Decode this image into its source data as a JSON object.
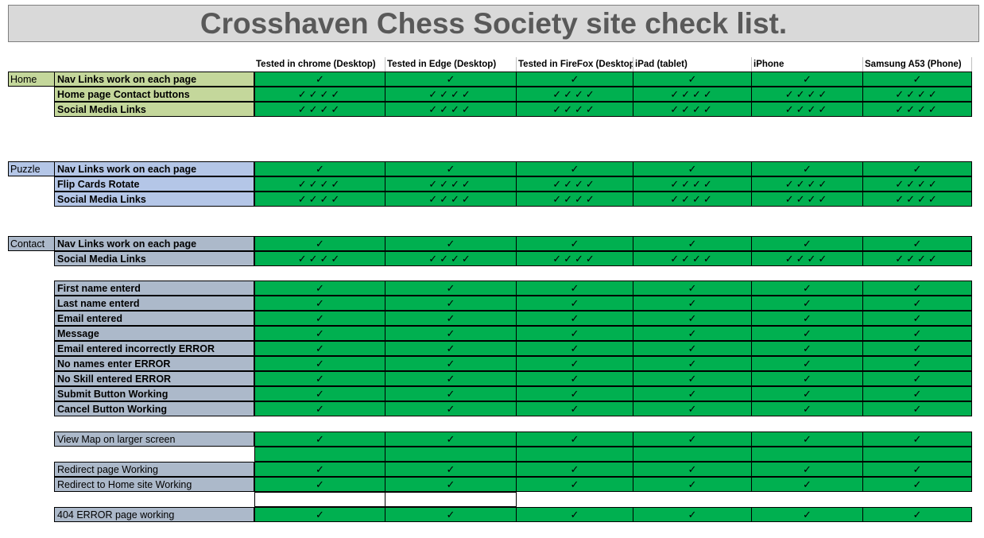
{
  "title": "Crosshaven Chess Society site check list.",
  "columns": [
    "Tested in chrome (Desktop)",
    "Tested in Edge (Desktop)",
    "Tested in FireFox (Desktop)",
    "iPad (tablet)",
    "iPhone",
    "Samsung  A53 (Phone)"
  ],
  "marks": {
    "single": "✓",
    "quad": "✓✓✓✓"
  },
  "sections": [
    {
      "name": "Home",
      "color": "#c4d79b",
      "rows": [
        {
          "label": "Nav Links work on each page",
          "mark": "single",
          "bold": true
        },
        {
          "label": "Home  page Contact buttons",
          "mark": "quad",
          "bold": true
        },
        {
          "label": " Social Media Links",
          "mark": "quad",
          "bold": true
        }
      ]
    },
    {
      "name": "Puzzle",
      "color": "#b4c6e7",
      "rows": [
        {
          "label": "Nav Links work on each page",
          "mark": "single",
          "bold": true
        },
        {
          "label": "Flip Cards Rotate",
          "mark": "quad",
          "bold": true
        },
        {
          "label": " Social Media Links",
          "mark": "quad",
          "bold": true
        }
      ]
    },
    {
      "name": "Contact",
      "color": "#acb9ca",
      "rows": [
        {
          "label": "Nav Links work on each page",
          "mark": "single",
          "bold": true
        },
        {
          "label": " Social Media Links",
          "mark": "quad",
          "bold": true
        }
      ]
    },
    {
      "name": "",
      "color": "#acb9ca",
      "rows": [
        {
          "label": "First name enterd",
          "mark": "single",
          "bold": true
        },
        {
          "label": "Last name enterd",
          "mark": "single",
          "bold": true
        },
        {
          "label": "Email entered",
          "mark": "single",
          "bold": true
        },
        {
          "label": "Message",
          "mark": "single",
          "bold": true
        },
        {
          "label": "Email entered incorrectly ERROR",
          "mark": "single",
          "bold": true
        },
        {
          "label": "No names enter ERROR",
          "mark": "single",
          "bold": true
        },
        {
          "label": "No Skill entered ERROR",
          "mark": "single",
          "bold": true
        },
        {
          "label": "Submit Button Working",
          "mark": "single",
          "bold": true
        },
        {
          "label": "Cancel Button Working",
          "mark": "single",
          "bold": true
        }
      ]
    },
    {
      "name": "",
      "color": "#acb9ca",
      "rows": [
        {
          "label": "View Map on larger screen",
          "mark": "single",
          "bold": false
        },
        {
          "label": "",
          "mark": "empty",
          "bold": false
        },
        {
          "label": "Redirect page Working",
          "mark": "single",
          "bold": false
        },
        {
          "label": "Redirect to Home site Working",
          "mark": "single",
          "bold": false
        },
        {
          "label": "",
          "mark": "white",
          "bold": false
        },
        {
          "label": "404 ERROR page working",
          "mark": "single",
          "bold": false
        }
      ]
    }
  ]
}
